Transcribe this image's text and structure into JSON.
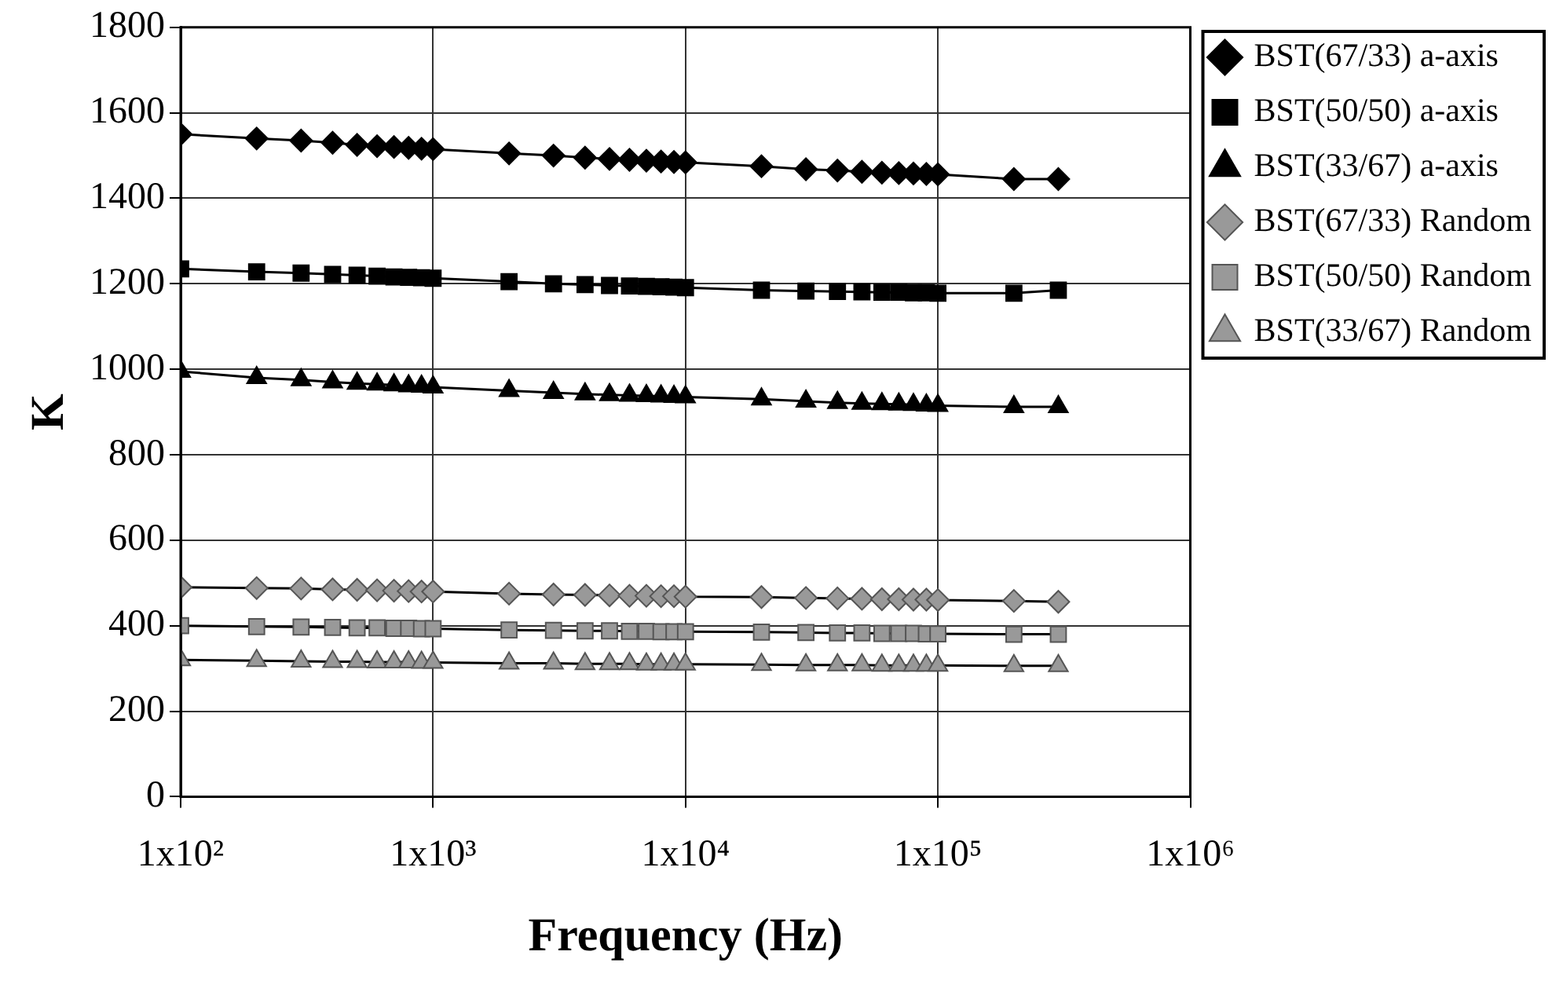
{
  "chart_data": {
    "type": "line",
    "xlabel": "Frequency (Hz)",
    "ylabel": "K",
    "log": "x",
    "x": [
      100,
      200,
      300,
      400,
      500,
      600,
      700,
      800,
      900,
      1000,
      2000,
      3000,
      4000,
      5000,
      6000,
      7000,
      8000,
      9000,
      10000,
      20000,
      30000,
      40000,
      50000,
      60000,
      70000,
      80000,
      90000,
      100000,
      200000,
      300000
    ],
    "xlim": [
      100,
      1000000
    ],
    "xticks": [
      {
        "value": 100,
        "label": "1x10²"
      },
      {
        "value": 1000,
        "label": "1x10³"
      },
      {
        "value": 10000,
        "label": "1x10⁴"
      },
      {
        "value": 100000,
        "label": "1x10⁵"
      },
      {
        "value": 1000000,
        "label": "1x10⁶"
      }
    ],
    "ylim": [
      0,
      1800
    ],
    "yticks": [
      0,
      200,
      400,
      600,
      800,
      1000,
      1200,
      1400,
      1600,
      1800
    ],
    "grid": true,
    "legend": "top right",
    "series": [
      {
        "name": "BST(67/33) a-axis",
        "color": "#000000",
        "marker": "diamond",
        "values": [
          1550,
          1540,
          1535,
          1530,
          1525,
          1522,
          1520,
          1518,
          1516,
          1515,
          1505,
          1500,
          1495,
          1492,
          1490,
          1488,
          1486,
          1485,
          1484,
          1475,
          1468,
          1465,
          1462,
          1460,
          1459,
          1458,
          1457,
          1456,
          1445,
          1445
        ]
      },
      {
        "name": "BST(50/50) a-axis",
        "color": "#000000",
        "marker": "square",
        "values": [
          1235,
          1228,
          1225,
          1222,
          1220,
          1218,
          1216,
          1215,
          1214,
          1213,
          1205,
          1200,
          1198,
          1196,
          1195,
          1194,
          1193,
          1192,
          1191,
          1185,
          1183,
          1182,
          1181,
          1180,
          1180,
          1179,
          1179,
          1178,
          1178,
          1185
        ]
      },
      {
        "name": "BST(33/67) a-axis",
        "color": "#000000",
        "marker": "triangle",
        "values": [
          995,
          980,
          975,
          970,
          967,
          965,
          963,
          961,
          960,
          958,
          950,
          945,
          942,
          940,
          939,
          938,
          937,
          936,
          935,
          930,
          925,
          922,
          920,
          919,
          918,
          917,
          916,
          915,
          912,
          912
        ]
      },
      {
        "name": "BST(67/33) Random",
        "color": "#999999",
        "marker": "diamond",
        "values": [
          490,
          488,
          487,
          485,
          484,
          483,
          482,
          481,
          480,
          480,
          475,
          473,
          472,
          471,
          470,
          470,
          469,
          469,
          468,
          467,
          465,
          464,
          463,
          462,
          462,
          461,
          461,
          460,
          458,
          456
        ]
      },
      {
        "name": "BST(50/50) Random",
        "color": "#999999",
        "marker": "square",
        "values": [
          400,
          398,
          397,
          396,
          395,
          395,
          394,
          394,
          393,
          393,
          390,
          389,
          388,
          388,
          387,
          387,
          386,
          386,
          386,
          385,
          384,
          383,
          383,
          382,
          382,
          382,
          381,
          381,
          380,
          380
        ]
      },
      {
        "name": "BST(33/67) Random",
        "color": "#999999",
        "marker": "triangle",
        "values": [
          320,
          318,
          317,
          316,
          316,
          315,
          315,
          315,
          314,
          314,
          312,
          312,
          311,
          311,
          311,
          310,
          310,
          310,
          310,
          309,
          308,
          308,
          308,
          307,
          307,
          307,
          307,
          307,
          306,
          306
        ]
      }
    ]
  }
}
